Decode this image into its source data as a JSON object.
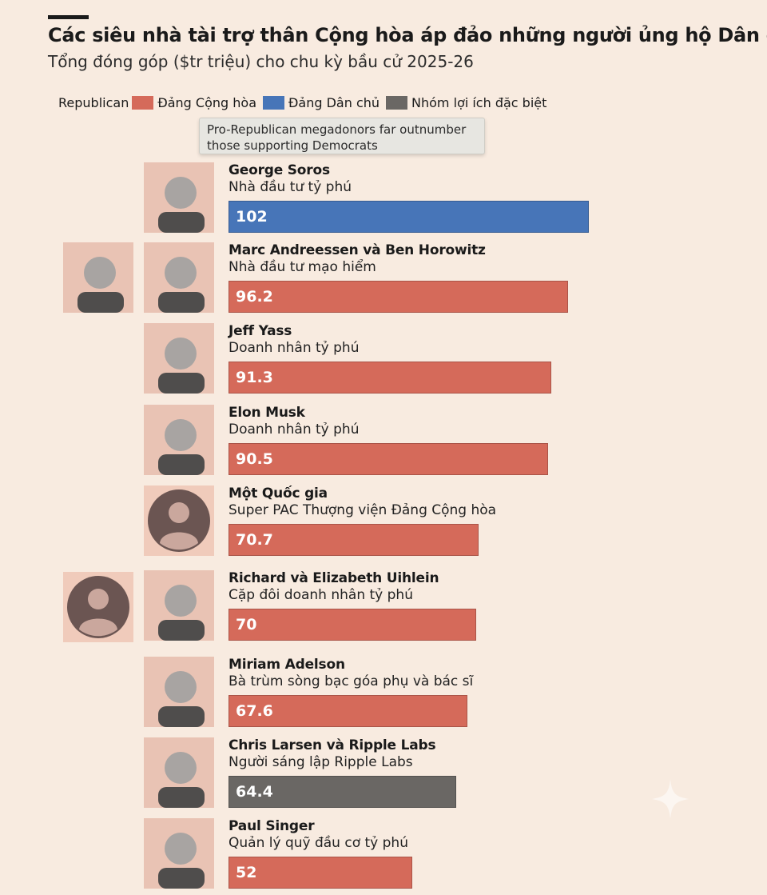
{
  "header": {
    "title": "Các siêu nhà tài trợ thân Cộng hòa áp đảo những người ủng hộ Dân chủ",
    "subtitle": "Tổng đóng góp ($tr triệu) cho chu kỳ bầu cử 2025-26"
  },
  "legend": {
    "lead": "Republican",
    "items": [
      {
        "label": "Đảng Cộng hòa",
        "color": "#d56a5a"
      },
      {
        "label": "Đảng Dân chủ",
        "color": "#4775b8"
      },
      {
        "label": "Nhóm lợi ích đặc biệt",
        "color": "#6a6764"
      }
    ]
  },
  "tooltip": {
    "line1": "Pro-Republican megadonors far outnumber",
    "line2": "those supporting Democrats"
  },
  "colors": {
    "Republican": "#d56a5a",
    "Democrat": "#4775b8",
    "Special": "#6a6764"
  },
  "chart_data": {
    "type": "bar",
    "orientation": "horizontal",
    "title": "Các siêu nhà tài trợ thân Cộng hòa áp đảo những người ủng hộ Dân chủ",
    "subtitle": "Tổng đóng góp ($tr triệu) cho chu kỳ bầu cử 2025-26",
    "xlim": [
      0,
      102
    ],
    "grid": false,
    "legend_position": "top-left",
    "rows": [
      {
        "name": "George Soros",
        "role": "Nhà đầu tư tỷ phú",
        "value": 102,
        "party": "Democrat",
        "label": "102",
        "photos": [
          "photo"
        ]
      },
      {
        "name": "Marc Andreessen và Ben Horowitz",
        "role": "Nhà đầu tư mạo hiểm",
        "value": 96.2,
        "party": "Republican",
        "label": "96.2",
        "photos": [
          "photo",
          "photo"
        ]
      },
      {
        "name": "Jeff Yass",
        "role": "Doanh nhân tỷ phú",
        "value": 91.3,
        "party": "Republican",
        "label": "91.3",
        "photos": [
          "photo"
        ]
      },
      {
        "name": "Elon Musk",
        "role": "Doanh nhân tỷ phú",
        "value": 90.5,
        "party": "Republican",
        "label": "90.5",
        "photos": [
          "photo"
        ]
      },
      {
        "name": "Một Quốc gia",
        "role": "Super PAC Thượng viện Đảng Cộng hòa",
        "value": 70.7,
        "party": "Republican",
        "label": "70.7",
        "photos": [
          "placeholder"
        ]
      },
      {
        "name": "Richard và Elizabeth Uihlein",
        "role": "Cặp đôi doanh nhân tỷ phú",
        "value": 70,
        "party": "Republican",
        "label": "70",
        "photos": [
          "photo",
          "placeholder"
        ]
      },
      {
        "name": "Miriam Adelson",
        "role": "Bà trùm sòng bạc góa phụ và bác sĩ",
        "value": 67.6,
        "party": "Republican",
        "label": "67.6",
        "photos": [
          "photo"
        ]
      },
      {
        "name": "Chris Larsen và Ripple Labs",
        "role": "Người sáng lập Ripple Labs",
        "value": 64.4,
        "party": "Special",
        "label": "64.4",
        "photos": [
          "photo"
        ]
      },
      {
        "name": "Paul Singer",
        "role": "Quản lý quỹ đầu cơ tỷ phú",
        "value": 52,
        "party": "Republican",
        "label": "52",
        "photos": [
          "photo"
        ]
      }
    ]
  }
}
